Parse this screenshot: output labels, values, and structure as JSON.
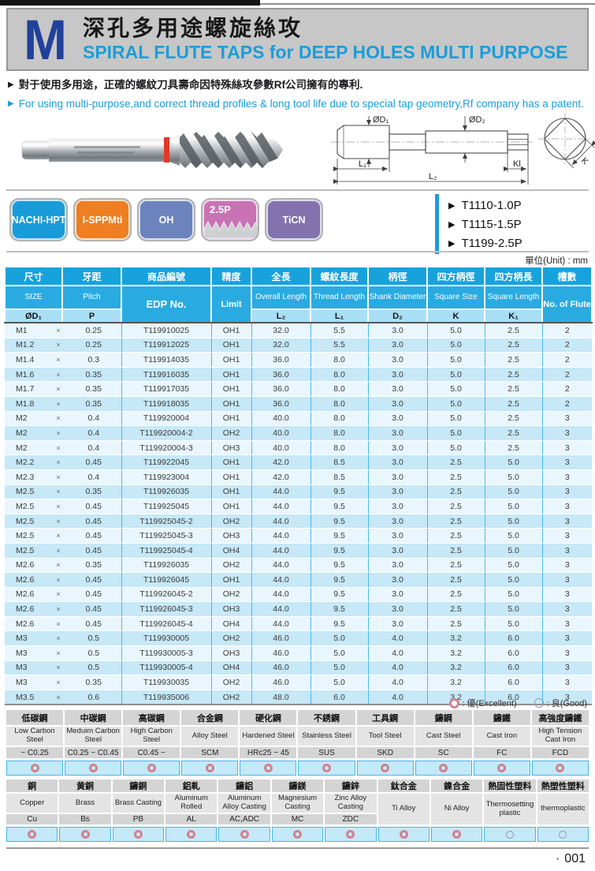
{
  "header": {
    "letter": "M",
    "title_zh": "深孔多用途螺旋絲攻",
    "title_en": "SPIRAL FLUTE TAPS for DEEP HOLES MULTI PURPOSE"
  },
  "notes": [
    {
      "text": "對于使用多用途，正確的螺紋刀具壽命因特殊絲攻參數Rf公司擁有的專利.",
      "color": "#1d1d1f"
    },
    {
      "text": "For using multi-purpose,and correct thread profiles & long tool life due to special tap geometry,Rf company has a patent.",
      "color": "#1b9dd9"
    }
  ],
  "diagram": {
    "d1": "ØD₁",
    "d2": "ØD₂",
    "l1": "L₁",
    "l2": "L₂",
    "kl": "Kl",
    "k": "K"
  },
  "badges": [
    {
      "label": "NACHI-HPT",
      "bg": "#199cd8",
      "thread_profile": false
    },
    {
      "label": "I-SPPMti",
      "bg": "#ee7f22",
      "thread_profile": false
    },
    {
      "label": "OH",
      "bg": "#6c83bd",
      "thread_profile": false
    },
    {
      "label": "2.5P",
      "bg": "#c973b4",
      "thread_profile": true
    },
    {
      "label": "TiCN",
      "bg": "#8273ae",
      "thread_profile": false
    }
  ],
  "models": [
    "T1110-1.0P",
    "T1115-1.5P",
    "T1199-2.5P"
  ],
  "unit_note": "單位(Unit) : mm",
  "main_table": {
    "multiply_sign": "×",
    "columns": [
      {
        "zh": "尺寸",
        "en": "SIZE",
        "sym": "ØD₁"
      },
      {
        "zh": "牙距",
        "en": "Pitch",
        "sym": "P"
      },
      {
        "zh": "商品編號",
        "en": "EDP No.",
        "sym": null
      },
      {
        "zh": "精度",
        "en": "Limit",
        "sym": null
      },
      {
        "zh": "全長",
        "en": "Overall Length",
        "sym": "L₂"
      },
      {
        "zh": "螺紋長度",
        "en": "Thread Length",
        "sym": "L₁"
      },
      {
        "zh": "柄徑",
        "en": "Shank Diameter",
        "sym": "D₂"
      },
      {
        "zh": "四方柄徑",
        "en": "Square Size",
        "sym": "K"
      },
      {
        "zh": "四方柄長",
        "en": "Square Length",
        "sym": "K₁"
      },
      {
        "zh": "槽數",
        "en": "No. of Flute",
        "sym": null
      }
    ],
    "rows": [
      [
        "M1",
        "0.25",
        "T119910025",
        "OH1",
        "32.0",
        "5.5",
        "3.0",
        "5.0",
        "2.5",
        "2"
      ],
      [
        "M1.2",
        "0.25",
        "T119912025",
        "OH1",
        "32.0",
        "5.5",
        "3.0",
        "5.0",
        "2.5",
        "2"
      ],
      [
        "M1.4",
        "0.3",
        "T119914035",
        "OH1",
        "36.0",
        "8.0",
        "3.0",
        "5.0",
        "2.5",
        "2"
      ],
      [
        "M1.6",
        "0.35",
        "T119916035",
        "OH1",
        "36.0",
        "8.0",
        "3.0",
        "5.0",
        "2.5",
        "2"
      ],
      [
        "M1.7",
        "0.35",
        "T119917035",
        "OH1",
        "36.0",
        "8.0",
        "3.0",
        "5.0",
        "2.5",
        "2"
      ],
      [
        "M1.8",
        "0.35",
        "T119918035",
        "OH1",
        "36.0",
        "8.0",
        "3.0",
        "5.0",
        "2.5",
        "2"
      ],
      [
        "M2",
        "0.4",
        "T119920004",
        "OH1",
        "40.0",
        "8.0",
        "3.0",
        "5.0",
        "2.5",
        "3"
      ],
      [
        "M2",
        "0.4",
        "T119920004-2",
        "OH2",
        "40.0",
        "8.0",
        "3.0",
        "5.0",
        "2.5",
        "3"
      ],
      [
        "M2",
        "0.4",
        "T119920004-3",
        "OH3",
        "40.0",
        "8.0",
        "3.0",
        "5.0",
        "2.5",
        "3"
      ],
      [
        "M2.2",
        "0.45",
        "T119922045",
        "OH1",
        "42.0",
        "8.5",
        "3.0",
        "2.5",
        "5.0",
        "3"
      ],
      [
        "M2.3",
        "0.4",
        "T119923004",
        "OH1",
        "42.0",
        "8.5",
        "3.0",
        "2.5",
        "5.0",
        "3"
      ],
      [
        "M2.5",
        "0.35",
        "T119926035",
        "OH1",
        "44.0",
        "9.5",
        "3.0",
        "2.5",
        "5.0",
        "3"
      ],
      [
        "M2.5",
        "0.45",
        "T119925045",
        "OH1",
        "44.0",
        "9.5",
        "3.0",
        "2.5",
        "5.0",
        "3"
      ],
      [
        "M2.5",
        "0.45",
        "T119925045-2",
        "OH2",
        "44.0",
        "9.5",
        "3.0",
        "2.5",
        "5.0",
        "3"
      ],
      [
        "M2.5",
        "0.45",
        "T119925045-3",
        "OH3",
        "44.0",
        "9.5",
        "3.0",
        "2.5",
        "5.0",
        "3"
      ],
      [
        "M2.5",
        "0.45",
        "T119925045-4",
        "OH4",
        "44.0",
        "9.5",
        "3.0",
        "2.5",
        "5.0",
        "3"
      ],
      [
        "M2.6",
        "0.35",
        "T119926035",
        "OH2",
        "44.0",
        "9.5",
        "3.0",
        "2.5",
        "5.0",
        "3"
      ],
      [
        "M2.6",
        "0.45",
        "T119926045",
        "OH1",
        "44.0",
        "9.5",
        "3.0",
        "2.5",
        "5.0",
        "3"
      ],
      [
        "M2.6",
        "0.45",
        "T119926045-2",
        "OH2",
        "44.0",
        "9.5",
        "3.0",
        "2.5",
        "5.0",
        "3"
      ],
      [
        "M2.6",
        "0.45",
        "T119926045-3",
        "OH3",
        "44.0",
        "9.5",
        "3.0",
        "2.5",
        "5.0",
        "3"
      ],
      [
        "M2.6",
        "0.45",
        "T119926045-4",
        "OH4",
        "44.0",
        "9.5",
        "3.0",
        "2.5",
        "5.0",
        "3"
      ],
      [
        "M3",
        "0.5",
        "T119930005",
        "OH2",
        "46.0",
        "5.0",
        "4.0",
        "3.2",
        "6.0",
        "3"
      ],
      [
        "M3",
        "0.5",
        "T119930005-3",
        "OH3",
        "46.0",
        "5.0",
        "4.0",
        "3.2",
        "6.0",
        "3"
      ],
      [
        "M3",
        "0.5",
        "T119930005-4",
        "OH4",
        "46.0",
        "5.0",
        "4.0",
        "3.2",
        "6.0",
        "3"
      ],
      [
        "M3",
        "0.35",
        "T119930035",
        "OH2",
        "46.0",
        "5.0",
        "4.0",
        "3.2",
        "6.0",
        "3"
      ],
      [
        "M3.5",
        "0.6",
        "T119935006",
        "OH2",
        "48.0",
        "6.0",
        "4.0",
        "3.2",
        "6.0",
        "3"
      ]
    ]
  },
  "legend": {
    "excellent_label": ": 優(Excellent)",
    "good_label": ": 良(Good)"
  },
  "materials1": {
    "columns": [
      {
        "zh": "低碳鋼",
        "en": "Low Carbon Steel",
        "spec": "~ C0.25",
        "rating": "excellent"
      },
      {
        "zh": "中碳鋼",
        "en": "Meduim Carbon Steel",
        "spec": "C0.25 ~ C0.45",
        "rating": "excellent"
      },
      {
        "zh": "高碳鋼",
        "en": "High Carbon Steel",
        "spec": "C0.45 ~",
        "rating": "excellent"
      },
      {
        "zh": "合金鋼",
        "en": "Alloy Steel",
        "spec": "SCM",
        "rating": "excellent"
      },
      {
        "zh": "硬化鋼",
        "en": "Hardened Steel",
        "spec": "HRc25 ~ 45",
        "rating": "excellent"
      },
      {
        "zh": "不銹鋼",
        "en": "Stainless Steel",
        "spec": "SUS",
        "rating": "excellent"
      },
      {
        "zh": "工具鋼",
        "en": "Tool Steel",
        "spec": "SKD",
        "rating": "excellent"
      },
      {
        "zh": "鑄鋼",
        "en": "Cast Steel",
        "spec": "SC",
        "rating": "excellent"
      },
      {
        "zh": "鑄鐵",
        "en": "Cast Iron",
        "spec": "FC",
        "rating": "excellent"
      },
      {
        "zh": "高強度鑄鐵",
        "en": "High Tension Cast Iron",
        "spec": "FCD",
        "rating": "excellent"
      }
    ]
  },
  "materials2": {
    "columns": [
      {
        "zh": "銅",
        "en": "Copper",
        "spec": "Cu",
        "rating": "excellent"
      },
      {
        "zh": "黄銅",
        "en": "Brass",
        "spec": "Bs",
        "rating": "excellent"
      },
      {
        "zh": "鑄銅",
        "en": "Brass Casting",
        "spec": "PB",
        "rating": "excellent"
      },
      {
        "zh": "鋁軋",
        "en": "Aluminum Rolled",
        "spec": "AL",
        "rating": "excellent"
      },
      {
        "zh": "鑄鋁",
        "en": "Aluminum Alloy Casting",
        "spec": "AC,ADC",
        "rating": "excellent"
      },
      {
        "zh": "鑄鎂",
        "en": "Magnesium Casting",
        "spec": "MC",
        "rating": "excellent"
      },
      {
        "zh": "鑄鋅",
        "en": "Zinc Alloy Casting",
        "spec": "ZDC",
        "rating": "excellent"
      },
      {
        "zh": "鈦合金",
        "en": "Ti Alloy",
        "spec": "",
        "rating": "excellent"
      },
      {
        "zh": "鎳合金",
        "en": "Ni Alloy",
        "spec": "",
        "rating": "excellent"
      },
      {
        "zh": "熱固性塑料",
        "en": "Thermosetting plastic",
        "spec": "",
        "rating": "good"
      },
      {
        "zh": "熱塑性塑料",
        "en": "thermoplastic",
        "spec": "",
        "rating": "good"
      }
    ]
  },
  "footer": {
    "bullet": "·",
    "page_number": "001"
  }
}
